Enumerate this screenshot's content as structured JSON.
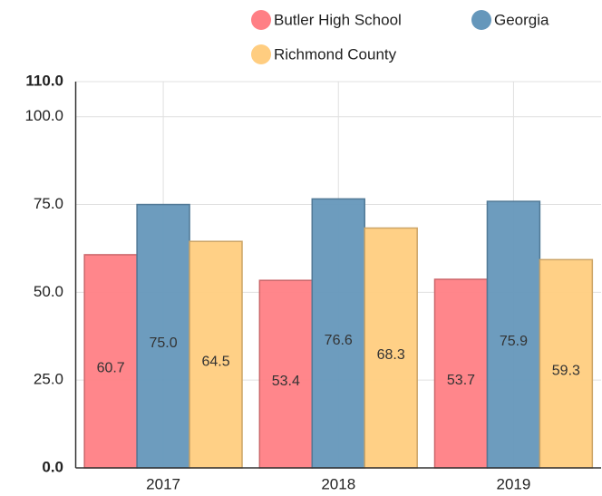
{
  "chart_data": {
    "type": "bar",
    "categories": [
      "2017",
      "2018",
      "2019"
    ],
    "series": [
      {
        "name": "Butler High School",
        "color": "#ff7f85",
        "values": [
          60.7,
          53.4,
          53.7
        ],
        "value_labels": [
          "60.7",
          "53.4",
          "53.7"
        ]
      },
      {
        "name": "Georgia",
        "color": "#6597bb",
        "values": [
          75.0,
          76.6,
          75.9
        ],
        "value_labels": [
          "75.0",
          "76.6",
          "75.9"
        ]
      },
      {
        "name": "Richmond County",
        "color": "#ffcd80",
        "values": [
          64.5,
          68.3,
          59.3
        ],
        "value_labels": [
          "64.5",
          "68.3",
          "59.3"
        ]
      }
    ],
    "ylim": [
      0,
      110
    ],
    "yticks": [
      {
        "value": 0,
        "label": "0.0"
      },
      {
        "value": 25,
        "label": "25.0"
      },
      {
        "value": 50,
        "label": "50.0"
      },
      {
        "value": 75,
        "label": "75.0"
      },
      {
        "value": 100,
        "label": "100.0"
      },
      {
        "value": 110,
        "label": "110.0"
      }
    ],
    "grid": true
  }
}
